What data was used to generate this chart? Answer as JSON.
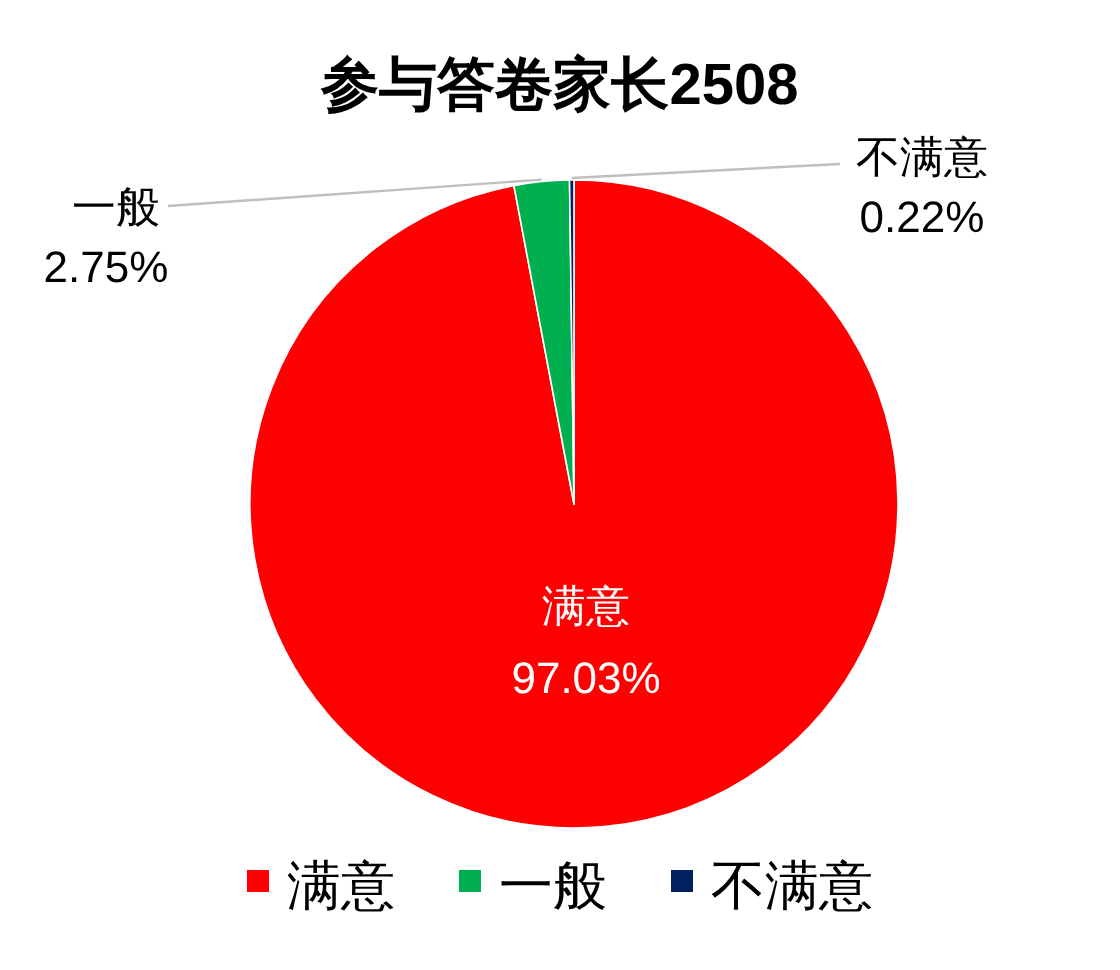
{
  "chart_data": {
    "type": "pie",
    "title": "参与答卷家长2508",
    "categories": [
      "满意",
      "一般",
      "不满意"
    ],
    "values": [
      97.03,
      2.75,
      0.22
    ],
    "value_labels": [
      "97.03%",
      "2.75%",
      "0.22%"
    ],
    "colors": [
      "#ff0000",
      "#00b050",
      "#002060"
    ],
    "legend": "bottom"
  }
}
